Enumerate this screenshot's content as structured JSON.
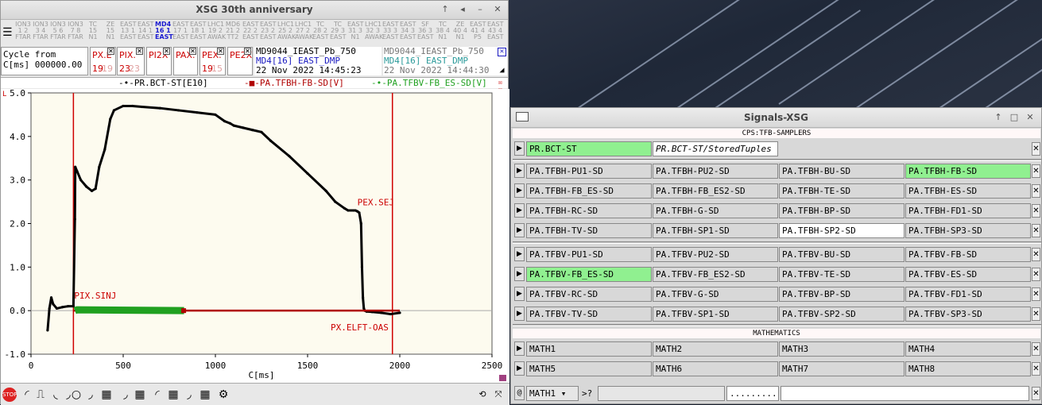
{
  "xsg_window": {
    "title": "XSG 30th anniversary",
    "machine_columns": [
      {
        "l1": "ION3",
        "l2": "1 2",
        "l3": "FTAR"
      },
      {
        "l1": "ION3",
        "l2": "3 4",
        "l3": "FTAR"
      },
      {
        "l1": "ION3",
        "l2": "5 6",
        "l3": "FTAR"
      },
      {
        "l1": "ION3",
        "l2": "7 8",
        "l3": "FTAR"
      },
      {
        "l1": "TC",
        "l2": "15",
        "l3": "N1"
      },
      {
        "l1": "ZE",
        "l2": "15",
        "l3": "N1"
      },
      {
        "l1": "EAST",
        "l2": "13 1",
        "l3": "EAST"
      },
      {
        "l1": "EAST",
        "l2": "14 1",
        "l3": "EAST"
      },
      {
        "l1": "MD4",
        "l2": "16 1",
        "l3": "EAST"
      },
      {
        "l1": "EAST",
        "l2": "17 1",
        "l3": "EAST"
      },
      {
        "l1": "EAST",
        "l2": "18 1",
        "l3": "EAST"
      },
      {
        "l1": "LHC1",
        "l2": "19 2",
        "l3": "AWAK"
      },
      {
        "l1": "MD6",
        "l2": "21 2",
        "l3": "TT2"
      },
      {
        "l1": "EAST",
        "l2": "22 2",
        "l3": "EAST"
      },
      {
        "l1": "EAST",
        "l2": "23 2",
        "l3": "EAST"
      },
      {
        "l1": "LHC1",
        "l2": "25 2",
        "l3": "AWAK"
      },
      {
        "l1": "LHC1",
        "l2": "27 2",
        "l3": "AWAK"
      },
      {
        "l1": "TC",
        "l2": "28 2",
        "l3": "EAST"
      },
      {
        "l1": "TC",
        "l2": "29 3",
        "l3": "EAST"
      },
      {
        "l1": "EAST",
        "l2": "31 3",
        "l3": "N1"
      },
      {
        "l1": "LHC1",
        "l2": "32 3",
        "l3": "AWAK"
      },
      {
        "l1": "EAST",
        "l2": "33 3",
        "l3": "EAST"
      },
      {
        "l1": "EAST",
        "l2": "34 3",
        "l3": "EAST"
      },
      {
        "l1": "SF",
        "l2": "36 3",
        "l3": "EAST"
      },
      {
        "l1": "TC",
        "l2": "38 4",
        "l3": "N1"
      },
      {
        "l1": "ZE",
        "l2": "40 4",
        "l3": "N1"
      },
      {
        "l1": "EAST",
        "l2": "41 4",
        "l3": "P5"
      },
      {
        "l1": "EAST",
        "l2": "43 4",
        "l3": "EAST"
      }
    ],
    "cycle": {
      "line1": "Cycle from",
      "line2": "C[ms] 000000.00"
    },
    "cycle_boxes": [
      {
        "label": "PX.E",
        "num": "19",
        "num2": "19"
      },
      {
        "label": "PIX.",
        "num": "23",
        "num2": "23"
      },
      {
        "label": "PI2X",
        "num": "",
        "num2": ""
      },
      {
        "label": "PAX.",
        "num": "",
        "num2": ""
      },
      {
        "label": "PEX.",
        "num": "19",
        "num2": "15"
      },
      {
        "label": "PE2X",
        "num": "",
        "num2": ""
      }
    ],
    "info_current": {
      "line1": "MD9044_IEAST_Pb_750",
      "line2": "MD4[16] EAST_DMP",
      "line3": "22 Nov 2022 14:45:23"
    },
    "info_previous": {
      "line1": "MD9044_IEAST_Pb_750",
      "line2": "MD4[16] EAST_DMP",
      "line3": "22 Nov 2022 14:44:30"
    },
    "legend": [
      {
        "name": "PR.BCT-ST[E10]",
        "color": "#000000"
      },
      {
        "name": "PA.TFBH-FB-SD[V]",
        "color": "#b00000"
      },
      {
        "name": "PA.TFBV-FB_ES-SD[V]",
        "color": "#20a020"
      }
    ],
    "plot_markers": {
      "corner": "L",
      "pix_sinj": "PIX.SINJ",
      "pex_sej": "PEX.SEJ",
      "px_elft": "PX.ELFT-OAS"
    },
    "xlabel": "C[ms]"
  },
  "chart_data": {
    "type": "line",
    "xlabel": "C[ms]",
    "ylabel": "",
    "xlim": [
      0,
      2500
    ],
    "ylim": [
      -1.0,
      5.0
    ],
    "xticks": [
      "0",
      "500",
      "1000",
      "1500",
      "2000",
      "2500"
    ],
    "yticks": [
      "-1.0",
      "0.0",
      "1.0",
      "2.0",
      "3.0",
      "4.0",
      "5.0"
    ],
    "series": [
      {
        "name": "PR.BCT-ST[E10]",
        "color": "#000000",
        "x": [
          90,
          100,
          110,
          120,
          140,
          170,
          200,
          230,
          238,
          240,
          250,
          270,
          300,
          330,
          350,
          370,
          400,
          430,
          450,
          500,
          550,
          600,
          700,
          800,
          900,
          1000,
          1050,
          1080,
          1100,
          1150,
          1200,
          1250,
          1300,
          1400,
          1500,
          1600,
          1650,
          1700,
          1720,
          1750,
          1760,
          1770,
          1780,
          1790,
          1795,
          1800,
          1805,
          1810,
          1820,
          1850,
          1900,
          1950,
          2000
        ],
        "y": [
          -0.45,
          0.05,
          0.3,
          0.15,
          0.05,
          0.08,
          0.1,
          0.1,
          2.1,
          3.3,
          3.2,
          3.0,
          2.85,
          2.75,
          2.8,
          3.3,
          3.7,
          4.4,
          4.6,
          4.7,
          4.7,
          4.68,
          4.65,
          4.6,
          4.55,
          4.5,
          4.35,
          4.3,
          4.25,
          4.2,
          4.15,
          4.1,
          3.9,
          3.55,
          3.15,
          2.75,
          2.5,
          2.35,
          2.3,
          2.3,
          2.3,
          2.28,
          2.25,
          2.0,
          1.0,
          0.3,
          0.05,
          0.0,
          -0.02,
          -0.03,
          -0.05,
          -0.08,
          -0.05
        ]
      },
      {
        "name": "PA.TFBH-FB-SD[V]",
        "color": "#b00000",
        "x": [
          230,
          830,
          2000
        ],
        "y": [
          0.0,
          0.0,
          0.0
        ]
      },
      {
        "name": "PA.TFBV-FB_ES-SD[V]",
        "color": "#20a020",
        "x": [
          238,
          250,
          830
        ],
        "y": [
          0.0,
          0.02,
          0.0
        ]
      }
    ],
    "vlines": [
      {
        "x": 230,
        "label": "PIX.SINJ"
      },
      {
        "x": 1960,
        "label": "PX.ELFT-OAS"
      }
    ]
  },
  "signals_window": {
    "title": "Signals-XSG",
    "section1": "CPS:TFB-SAMPLERS",
    "bct_row": {
      "signal": "PR.BCT-ST",
      "path": "PR.BCT-ST/StoredTuples"
    },
    "grid_rows": [
      [
        "PA.TFBH-PU1-SD",
        "PA.TFBH-PU2-SD",
        "PA.TFBH-BU-SD",
        "PA.TFBH-FB-SD"
      ],
      [
        "PA.TFBH-FB_ES-SD",
        "PA.TFBH-FB_ES2-SD",
        "PA.TFBH-TE-SD",
        "PA.TFBH-ES-SD"
      ],
      [
        "PA.TFBH-RC-SD",
        "PA.TFBH-G-SD",
        "PA.TFBH-BP-SD",
        "PA.TFBH-FD1-SD"
      ],
      [
        "PA.TFBH-TV-SD",
        "PA.TFBH-SP1-SD",
        "PA.TFBH-SP2-SD",
        "PA.TFBH-SP3-SD"
      ],
      [
        "PA.TFBV-PU1-SD",
        "PA.TFBV-PU2-SD",
        "PA.TFBV-BU-SD",
        "PA.TFBV-FB-SD"
      ],
      [
        "PA.TFBV-FB_ES-SD",
        "PA.TFBV-FB_ES2-SD",
        "PA.TFBV-TE-SD",
        "PA.TFBV-ES-SD"
      ],
      [
        "PA.TFBV-RC-SD",
        "PA.TFBV-G-SD",
        "PA.TFBV-BP-SD",
        "PA.TFBV-FD1-SD"
      ],
      [
        "PA.TFBV-TV-SD",
        "PA.TFBV-SP1-SD",
        "PA.TFBV-SP2-SD",
        "PA.TFBV-SP3-SD"
      ]
    ],
    "section2": "MATHEMATICS",
    "math_rows": [
      [
        "MATH1",
        "MATH2",
        "MATH3",
        "MATH4"
      ],
      [
        "MATH5",
        "MATH6",
        "MATH7",
        "MATH8"
      ]
    ],
    "bottom": {
      "at": "@",
      "select": "MATH1",
      "query": ">?",
      "dots": ".........."
    }
  }
}
